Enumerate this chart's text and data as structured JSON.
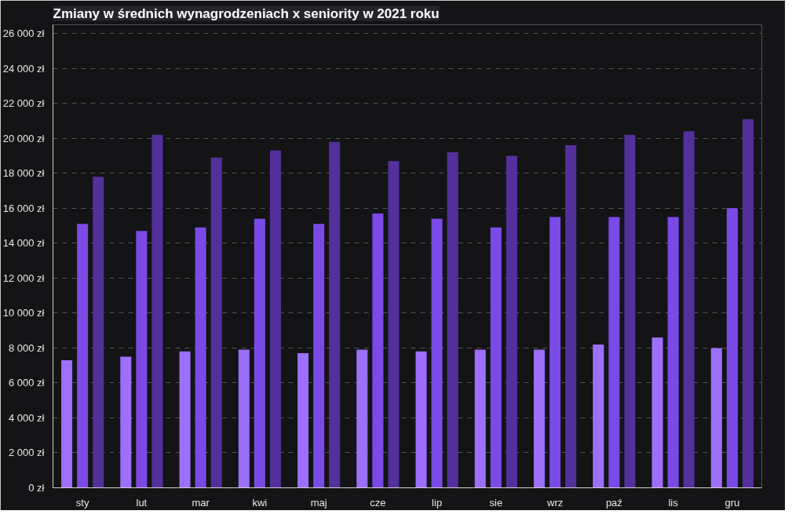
{
  "chart_data": {
    "type": "bar",
    "title": "Zmiany w średnich wynagrodzeniach x seniority w 2021 roku",
    "categories": [
      "sty",
      "lut",
      "mar",
      "kwi",
      "maj",
      "cze",
      "lip",
      "sie",
      "wrz",
      "paź",
      "lis",
      "gru"
    ],
    "series": [
      {
        "color": "#9d6ffb",
        "values": [
          7300,
          7500,
          7800,
          7900,
          7700,
          7900,
          7800,
          7900,
          7900,
          8200,
          8600,
          8000
        ]
      },
      {
        "color": "#7b4ae6",
        "values": [
          15100,
          14700,
          14900,
          15400,
          15100,
          15700,
          15400,
          14900,
          15500,
          15500,
          15500,
          16000
        ]
      },
      {
        "color": "#53309a",
        "values": [
          17800,
          20200,
          18900,
          19300,
          19800,
          18700,
          19200,
          19000,
          19600,
          20200,
          20400,
          21100
        ]
      }
    ],
    "ylim": [
      0,
      26500
    ],
    "yticks": [
      {
        "value": 0,
        "label": "0 zł"
      },
      {
        "value": 2000,
        "label": "2 000 zł"
      },
      {
        "value": 4000,
        "label": "4 000 zł"
      },
      {
        "value": 6000,
        "label": "6 000 zł"
      },
      {
        "value": 8000,
        "label": "8 000 zł"
      },
      {
        "value": 10000,
        "label": "10 000 zł"
      },
      {
        "value": 12000,
        "label": "12 000 zł"
      },
      {
        "value": 14000,
        "label": "14 000 zł"
      },
      {
        "value": 16000,
        "label": "16 000 zł"
      },
      {
        "value": 18000,
        "label": "18 000 zł"
      },
      {
        "value": 20000,
        "label": "20 000 zł"
      },
      {
        "value": 22000,
        "label": "22 000 zł"
      },
      {
        "value": 24000,
        "label": "24 000 zł"
      },
      {
        "value": 26000,
        "label": "26 000 zł"
      }
    ],
    "grid": "y"
  }
}
